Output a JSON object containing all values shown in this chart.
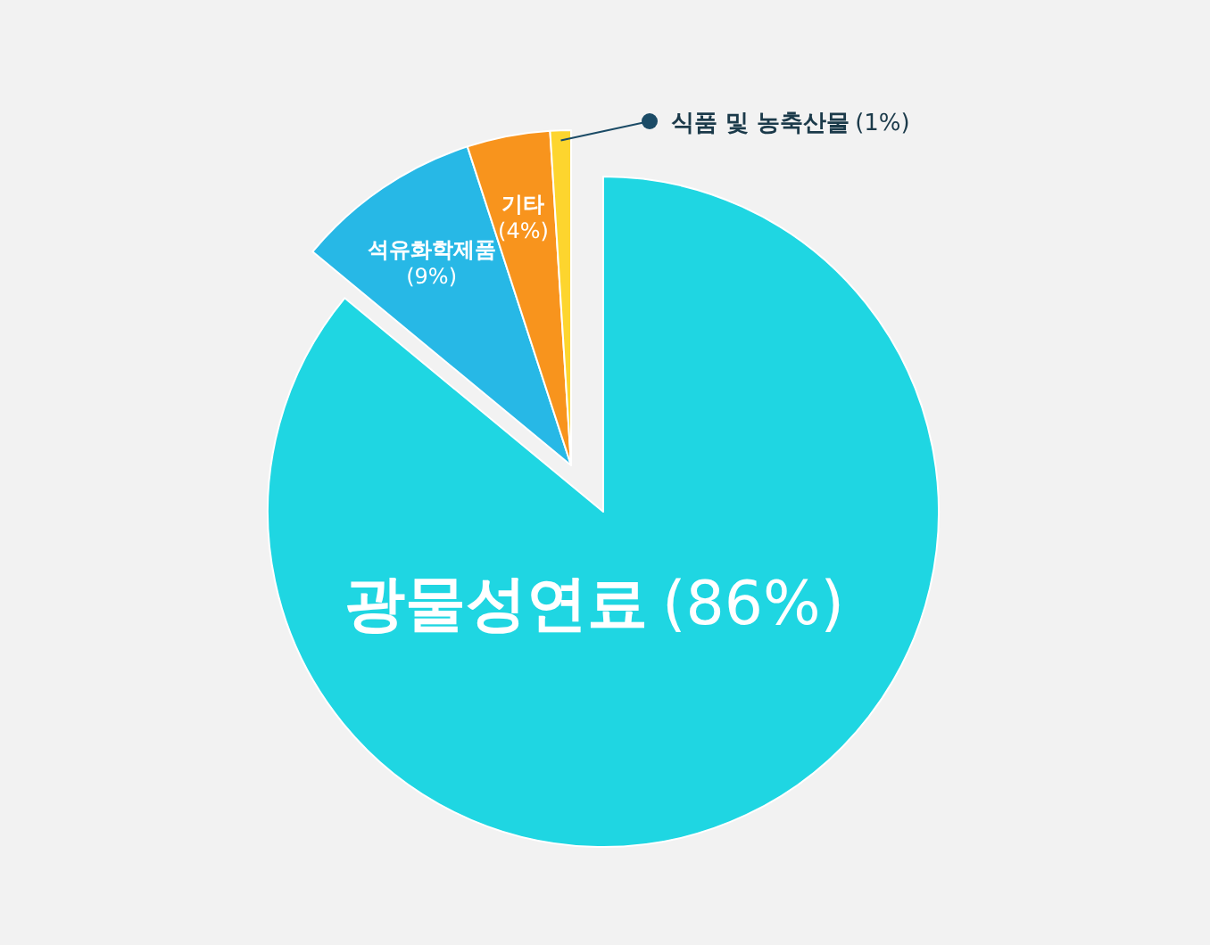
{
  "chart_data": {
    "type": "pie",
    "categories": [
      "광물성연료",
      "석유화학제품",
      "기타",
      "식품 및 농축산물"
    ],
    "values": [
      86,
      9,
      4,
      1
    ],
    "colors": [
      "#1fd6e2",
      "#27b8e6",
      "#f8941d",
      "#fdd52e"
    ],
    "value_labels": [
      "(86%)",
      "(9%)",
      "(4%)",
      "(1%)"
    ]
  }
}
